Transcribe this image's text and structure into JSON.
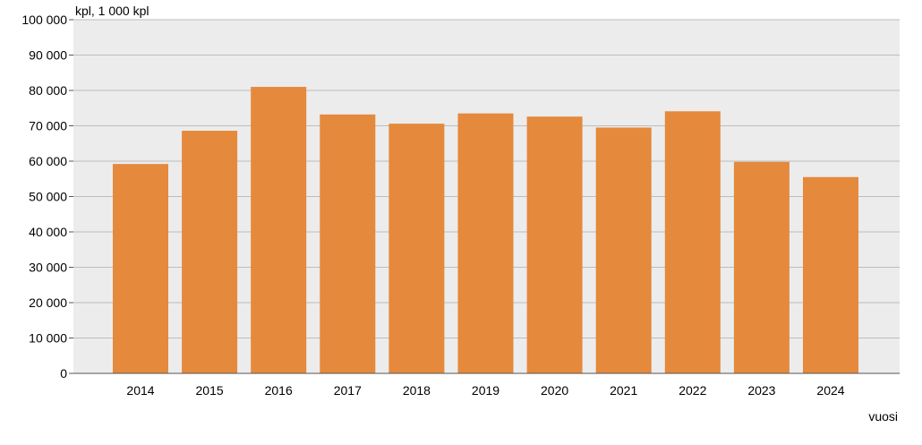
{
  "chart_data": {
    "type": "bar",
    "title": "",
    "ylabel": "kpl, 1 000 kpl",
    "xlabel": "vuosi",
    "categories": [
      "2014",
      "2015",
      "2016",
      "2017",
      "2018",
      "2019",
      "2020",
      "2021",
      "2022",
      "2023",
      "2024"
    ],
    "values": [
      59200,
      68600,
      81000,
      73200,
      70600,
      73500,
      72600,
      69500,
      74100,
      59800,
      55500
    ],
    "ylim": [
      0,
      100000
    ],
    "yticks": [
      {
        "value": 0,
        "label": "0"
      },
      {
        "value": 10000,
        "label": "10 000"
      },
      {
        "value": 20000,
        "label": "20 000"
      },
      {
        "value": 30000,
        "label": "30 000"
      },
      {
        "value": 40000,
        "label": "40 000"
      },
      {
        "value": 50000,
        "label": "50 000"
      },
      {
        "value": 60000,
        "label": "60 000"
      },
      {
        "value": 70000,
        "label": "70 000"
      },
      {
        "value": 80000,
        "label": "80 000"
      },
      {
        "value": 90000,
        "label": "90 000"
      },
      {
        "value": 100000,
        "label": "100 000"
      }
    ],
    "grid": true,
    "legend": "none",
    "colors": {
      "bar": "#e5893c",
      "plot_background": "#ececec",
      "gridline": "#bdbdbd",
      "axis": "#555555"
    }
  }
}
